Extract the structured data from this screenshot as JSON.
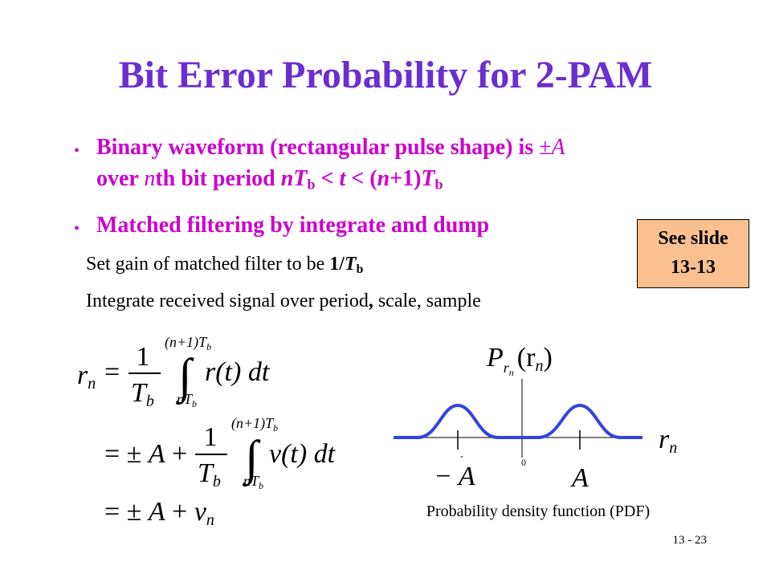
{
  "title": "Bit Error Probability for 2-PAM",
  "bullets": [
    {
      "line1": [
        "Binary waveform (rectangular pulse shape) is ",
        "±",
        "A"
      ],
      "line2": [
        "over ",
        "n",
        "th bit period ",
        "nT",
        "b",
        " < ",
        "t",
        " < (",
        "n",
        "+1)",
        "T",
        "b"
      ]
    },
    {
      "line1": [
        "Matched filtering by integrate and dump"
      ]
    }
  ],
  "sub_items": [
    [
      "Set gain of matched filter to be ",
      "1/",
      "T",
      "b"
    ],
    [
      "Integrate received signal over period",
      ",",
      " scale, sample"
    ]
  ],
  "callout": [
    "See slide",
    "13-13"
  ],
  "equations": [
    {
      "lhs": "r",
      "lhs_sub": "n",
      "eq": "=",
      "num": "1",
      "den": "T",
      "den_sub": "b",
      "upper": "(n+1)T",
      "upper_sub": "b",
      "integral": "∫",
      "lower": "nT",
      "lower_sub": "b",
      "integrand": "r(t) dt"
    },
    {
      "eq": "= ±",
      "a": "A",
      "plus": "+",
      "num": "1",
      "den": "T",
      "den_sub": "b",
      "upper": "(n+1)T",
      "upper_sub": "b",
      "integral": "∫",
      "lower": "nT",
      "lower_sub": "b",
      "integrand": "v(t) dt"
    },
    {
      "eq": "= ±",
      "a": "A",
      "plus": "+",
      "v": "v",
      "v_sub": "n"
    }
  ],
  "pdf_plot": {
    "ylabel": "P",
    "ylabel_sub": "r",
    "ylabel_subsub": "n",
    "ylabel_arg": "(r",
    "ylabel_arg_sub": "n",
    "ylabel_close": ")",
    "xlabel": "r",
    "xlabel_sub": "n",
    "minus_mark": "-",
    "zero": "0",
    "neg_a": "− A",
    "pos_a": "A",
    "caption": "Probability density function (PDF)"
  },
  "page_number": "13 - 23"
}
